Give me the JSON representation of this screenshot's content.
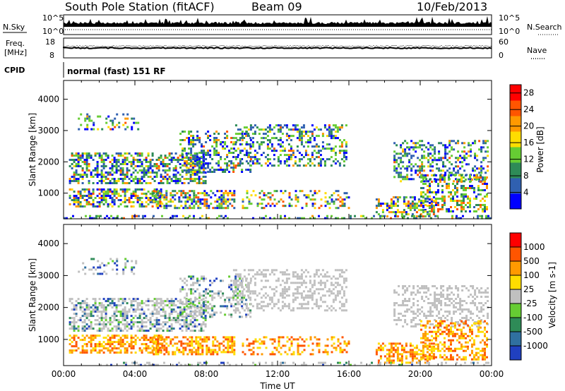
{
  "header": {
    "station": "South Pole Station (fitACF)",
    "beam": "Beam 09",
    "date": "10/Feb/2013"
  },
  "top_panels": {
    "nsky_label": "N.Sky",
    "nsearch_label": "N.Search",
    "noise_ticks": [
      "10^5",
      "10^0"
    ],
    "freq_label_1": "Freq.",
    "freq_label_2": "[MHz]",
    "freq_ticks": [
      "18",
      "8"
    ],
    "nave_label": "Nave",
    "nave_ticks": [
      "60",
      "0"
    ],
    "cpid_label": "CPID",
    "cpid_text": "normal (fast) 151 RF"
  },
  "colors": {
    "scale_low": "#0000ff",
    "scale_high": "#ff0000",
    "ground_scatter": "#c0c0c0"
  },
  "chart_data": [
    {
      "type": "heatmap",
      "title": "",
      "xlabel": "",
      "ylabel": "Slant Range [km]",
      "x_ticks": [
        "00:00",
        "04:00",
        "08:00",
        "12:00",
        "16:00",
        "20:00",
        "00:00"
      ],
      "xlim": [
        0,
        24
      ],
      "ylim": [
        180,
        4600
      ],
      "y_ticks": [
        1000,
        2000,
        3000,
        4000
      ],
      "colorbar": {
        "label": "Power [dB]",
        "ticks": [
          4,
          8,
          12,
          16,
          20,
          24,
          28
        ],
        "range": [
          0,
          30
        ],
        "colors": [
          "#0000ff",
          "#3060b0",
          "#2e8b57",
          "#66cc33",
          "#ffdd00",
          "#ff9900",
          "#ff5500",
          "#ff0000"
        ]
      }
    },
    {
      "type": "heatmap",
      "title": "",
      "xlabel": "Time UT",
      "ylabel": "Slant Range [km]",
      "x_ticks": [
        "00:00",
        "04:00",
        "08:00",
        "12:00",
        "16:00",
        "20:00",
        "00:00"
      ],
      "xlim": [
        0,
        24
      ],
      "ylim": [
        180,
        4600
      ],
      "y_ticks": [
        1000,
        2000,
        3000,
        4000
      ],
      "colorbar": {
        "label": "Velocity [m s-1]",
        "ticks": [
          1000,
          500,
          100,
          25,
          -25,
          -100,
          -500,
          -1000
        ],
        "colors": [
          "#2040c0",
          "#3070a0",
          "#2e8b57",
          "#66cc33",
          "#c0c0c0",
          "#ffdd00",
          "#ff9900",
          "#ff5500",
          "#ff0000"
        ]
      }
    }
  ]
}
